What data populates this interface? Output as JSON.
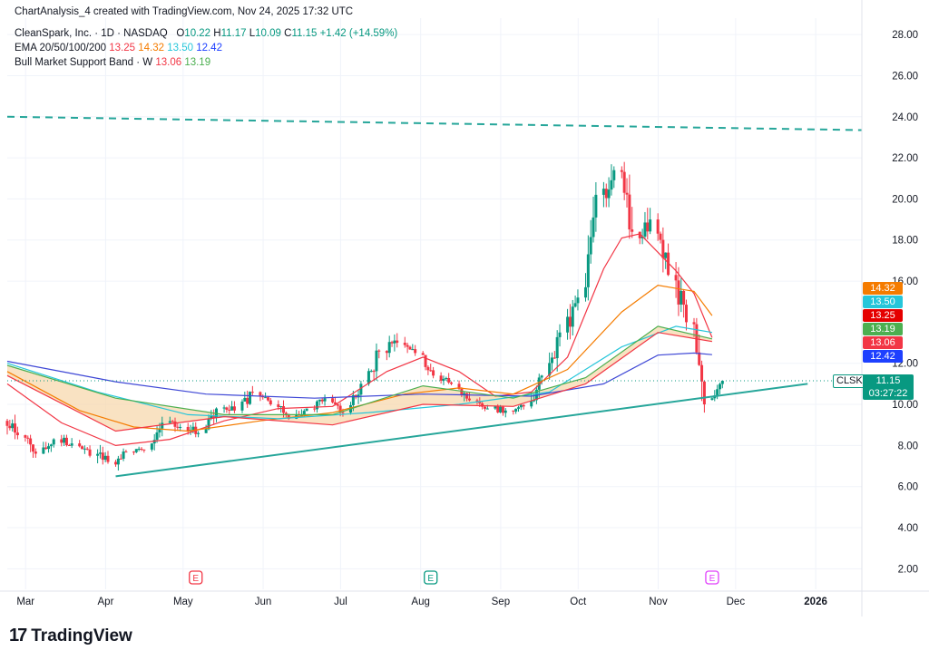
{
  "header": {
    "created": "ChartAnalysis_4 created with TradingView.com, Nov 24, 2025 17:32 UTC",
    "symbol": "CleanSpark, Inc. · 1D · NASDAQ",
    "open_label": "O",
    "open": "10.22",
    "high_label": "H",
    "high": "11.17",
    "low_label": "L",
    "low": "10.09",
    "close_label": "C",
    "close": "11.15",
    "change": "+1.42 (+14.59%)",
    "ema_label": "EMA 20/50/100/200",
    "ema20": "13.25",
    "ema50": "14.32",
    "ema100": "13.50",
    "ema200": "12.42",
    "band_label": "Bull Market Support Band · W",
    "band_lower": "13.06",
    "band_upper": "13.19"
  },
  "branding": {
    "logo": "TradingView"
  },
  "price_scale": {
    "ticks": [
      "28.00",
      "26.00",
      "24.00",
      "22.00",
      "20.00",
      "18.00",
      "16.00",
      "12.00",
      "10.00",
      "8.00",
      "6.00",
      "4.00",
      "2.00"
    ],
    "badges": [
      {
        "text": "14.32",
        "value": 14.32,
        "color": "#f57c00"
      },
      {
        "text": "13.50",
        "value": 13.5,
        "color": "#26c6da"
      },
      {
        "text": "13.25",
        "value": 13.25,
        "color": "#e50000"
      },
      {
        "text": "13.19",
        "value": 13.19,
        "color": "#4caf50"
      },
      {
        "text": "13.06",
        "value": 13.06,
        "color": "#f23645"
      },
      {
        "text": "12.42",
        "value": 12.42,
        "color": "#1e40ff"
      }
    ],
    "last": {
      "symbol": "CLSK",
      "price": "11.15",
      "countdown": "03:27:22"
    }
  },
  "time_scale": {
    "labels": [
      "Mar",
      "Apr",
      "May",
      "Jun",
      "Jul",
      "Aug",
      "Sep",
      "Oct",
      "Nov",
      "Dec",
      "2026"
    ]
  },
  "earnings_markers": [
    {
      "label": "E",
      "date": "2025-05-08",
      "color": "#f23645"
    },
    {
      "label": "E",
      "date": "2025-08-07",
      "color": "#089981"
    },
    {
      "label": "E",
      "date": "2025-11-24",
      "color": "#e040fb"
    }
  ],
  "chart_data": {
    "type": "candlestick",
    "symbol": "CLSK",
    "x_start": "2025-02-24",
    "x_end": "2026-01-21",
    "ylim": [
      1.0,
      28.8
    ],
    "y_scale": "linear",
    "grid": true,
    "candles_weekly_ohlc": [
      [
        "2025-02-24",
        9.2,
        10.1,
        8.3,
        8.5
      ],
      [
        "2025-03-03",
        8.5,
        8.9,
        7.4,
        7.6
      ],
      [
        "2025-03-10",
        7.6,
        8.6,
        7.4,
        8.3
      ],
      [
        "2025-03-17",
        8.3,
        8.9,
        7.8,
        8.1
      ],
      [
        "2025-03-24",
        8.1,
        8.4,
        7.3,
        7.5
      ],
      [
        "2025-03-31",
        7.5,
        8.4,
        6.5,
        7.2
      ],
      [
        "2025-04-07",
        7.2,
        7.9,
        6.6,
        7.7
      ],
      [
        "2025-04-14",
        7.7,
        8.0,
        7.4,
        7.8
      ],
      [
        "2025-04-21",
        7.8,
        9.4,
        7.7,
        9.1
      ],
      [
        "2025-04-28",
        9.1,
        9.6,
        8.6,
        8.9
      ],
      [
        "2025-05-05",
        8.9,
        9.5,
        8.4,
        8.6
      ],
      [
        "2025-05-12",
        8.6,
        10.1,
        8.6,
        9.8
      ],
      [
        "2025-05-19",
        9.8,
        10.5,
        9.4,
        9.7
      ],
      [
        "2025-05-26",
        9.7,
        11.0,
        9.4,
        10.6
      ],
      [
        "2025-06-02",
        10.6,
        10.8,
        9.8,
        10.0
      ],
      [
        "2025-06-09",
        10.0,
        10.2,
        9.0,
        9.3
      ],
      [
        "2025-06-16",
        9.3,
        10.2,
        9.1,
        9.8
      ],
      [
        "2025-06-23",
        9.8,
        10.5,
        9.6,
        10.3
      ],
      [
        "2025-06-30",
        10.3,
        10.6,
        9.4,
        9.6
      ],
      [
        "2025-07-07",
        9.6,
        11.2,
        9.5,
        11.0
      ],
      [
        "2025-07-14",
        11.0,
        13.0,
        10.9,
        12.6
      ],
      [
        "2025-07-21",
        12.6,
        13.6,
        12.0,
        13.0
      ],
      [
        "2025-07-28",
        13.0,
        13.4,
        12.2,
        12.5
      ],
      [
        "2025-08-04",
        12.5,
        12.6,
        11.2,
        11.4
      ],
      [
        "2025-08-11",
        11.4,
        11.7,
        10.7,
        11.0
      ],
      [
        "2025-08-18",
        11.0,
        11.3,
        10.0,
        10.2
      ],
      [
        "2025-08-25",
        10.2,
        10.4,
        9.5,
        9.8
      ],
      [
        "2025-09-01",
        9.8,
        10.1,
        9.2,
        9.7
      ],
      [
        "2025-09-08",
        9.7,
        10.0,
        9.3,
        9.9
      ],
      [
        "2025-09-15",
        9.9,
        11.6,
        9.8,
        11.4
      ],
      [
        "2025-09-22",
        11.4,
        13.9,
        11.2,
        13.5
      ],
      [
        "2025-09-29",
        13.5,
        15.6,
        13.1,
        15.2
      ],
      [
        "2025-10-06",
        15.2,
        21.0,
        15.0,
        20.2
      ],
      [
        "2025-10-13",
        20.2,
        23.7,
        19.6,
        21.4
      ],
      [
        "2025-10-20",
        21.4,
        21.8,
        17.2,
        18.4
      ],
      [
        "2025-10-27",
        18.4,
        20.9,
        17.8,
        19.0
      ],
      [
        "2025-11-03",
        19.0,
        19.3,
        15.8,
        16.3
      ],
      [
        "2025-11-10",
        16.3,
        17.1,
        13.6,
        14.0
      ],
      [
        "2025-11-17",
        14.0,
        14.2,
        9.6,
        10.0
      ],
      [
        "2025-11-24",
        10.22,
        11.17,
        10.09,
        11.15
      ]
    ],
    "series": [
      {
        "name": "EMA 20",
        "color": "#f23645",
        "points": [
          [
            "2025-02-24",
            11.0
          ],
          [
            "2025-03-17",
            9.1
          ],
          [
            "2025-04-07",
            8.0
          ],
          [
            "2025-04-28",
            8.3
          ],
          [
            "2025-05-19",
            9.2
          ],
          [
            "2025-06-09",
            9.8
          ],
          [
            "2025-06-30",
            9.9
          ],
          [
            "2025-07-21",
            11.6
          ],
          [
            "2025-08-04",
            12.3
          ],
          [
            "2025-08-18",
            11.6
          ],
          [
            "2025-09-01",
            10.4
          ],
          [
            "2025-09-15",
            10.6
          ],
          [
            "2025-09-29",
            12.3
          ],
          [
            "2025-10-13",
            16.6
          ],
          [
            "2025-10-20",
            18.1
          ],
          [
            "2025-10-27",
            18.3
          ],
          [
            "2025-11-10",
            16.5
          ],
          [
            "2025-11-17",
            15.4
          ],
          [
            "2025-11-24",
            13.25
          ]
        ]
      },
      {
        "name": "EMA 50",
        "color": "#f57c00",
        "points": [
          [
            "2025-02-24",
            11.6
          ],
          [
            "2025-03-24",
            9.7
          ],
          [
            "2025-04-14",
            8.9
          ],
          [
            "2025-05-05",
            8.7
          ],
          [
            "2025-06-02",
            9.2
          ],
          [
            "2025-06-30",
            9.6
          ],
          [
            "2025-07-28",
            10.5
          ],
          [
            "2025-08-18",
            10.8
          ],
          [
            "2025-09-08",
            10.5
          ],
          [
            "2025-09-29",
            11.7
          ],
          [
            "2025-10-20",
            14.5
          ],
          [
            "2025-11-03",
            15.8
          ],
          [
            "2025-11-17",
            15.5
          ],
          [
            "2025-11-24",
            14.32
          ]
        ]
      },
      {
        "name": "EMA 100",
        "color": "#26c6da",
        "points": [
          [
            "2025-02-24",
            12.0
          ],
          [
            "2025-03-31",
            10.6
          ],
          [
            "2025-05-05",
            9.5
          ],
          [
            "2025-06-09",
            9.3
          ],
          [
            "2025-07-14",
            9.6
          ],
          [
            "2025-08-18",
            10.0
          ],
          [
            "2025-09-22",
            10.6
          ],
          [
            "2025-10-20",
            12.8
          ],
          [
            "2025-11-10",
            13.8
          ],
          [
            "2025-11-24",
            13.5
          ]
        ]
      },
      {
        "name": "EMA 200",
        "color": "#3f48d6",
        "points": [
          [
            "2025-02-24",
            12.1
          ],
          [
            "2025-04-07",
            11.1
          ],
          [
            "2025-05-12",
            10.5
          ],
          [
            "2025-06-23",
            10.3
          ],
          [
            "2025-08-04",
            10.5
          ],
          [
            "2025-09-15",
            10.4
          ],
          [
            "2025-10-13",
            11.0
          ],
          [
            "2025-11-03",
            12.4
          ],
          [
            "2025-11-17",
            12.5
          ],
          [
            "2025-11-24",
            12.42
          ]
        ]
      },
      {
        "name": "Bull Market Support Band upper",
        "color": "#4caf50",
        "points": [
          [
            "2025-02-24",
            11.9
          ],
          [
            "2025-04-07",
            10.3
          ],
          [
            "2025-05-19",
            9.5
          ],
          [
            "2025-06-30",
            9.5
          ],
          [
            "2025-08-04",
            10.9
          ],
          [
            "2025-09-08",
            10.3
          ],
          [
            "2025-10-06",
            11.3
          ],
          [
            "2025-11-03",
            13.8
          ],
          [
            "2025-11-24",
            13.19
          ]
        ]
      },
      {
        "name": "Bull Market Support Band lower",
        "color": "#f23645",
        "points": [
          [
            "2025-02-24",
            11.4
          ],
          [
            "2025-04-07",
            8.7
          ],
          [
            "2025-05-19",
            9.4
          ],
          [
            "2025-06-30",
            9.0
          ],
          [
            "2025-08-04",
            10.0
          ],
          [
            "2025-09-08",
            9.9
          ],
          [
            "2025-10-06",
            11.0
          ],
          [
            "2025-11-03",
            13.5
          ],
          [
            "2025-11-24",
            13.06
          ]
        ]
      }
    ],
    "trendlines": [
      {
        "style": "dashed",
        "color": "#26a69a",
        "points": [
          [
            "2025-02-24",
            24.0
          ],
          [
            "2026-01-21",
            23.35
          ]
        ]
      },
      {
        "style": "solid",
        "color": "#26a69a",
        "points": [
          [
            "2025-04-07",
            6.5
          ],
          [
            "2025-12-31",
            11.0
          ]
        ]
      }
    ]
  }
}
